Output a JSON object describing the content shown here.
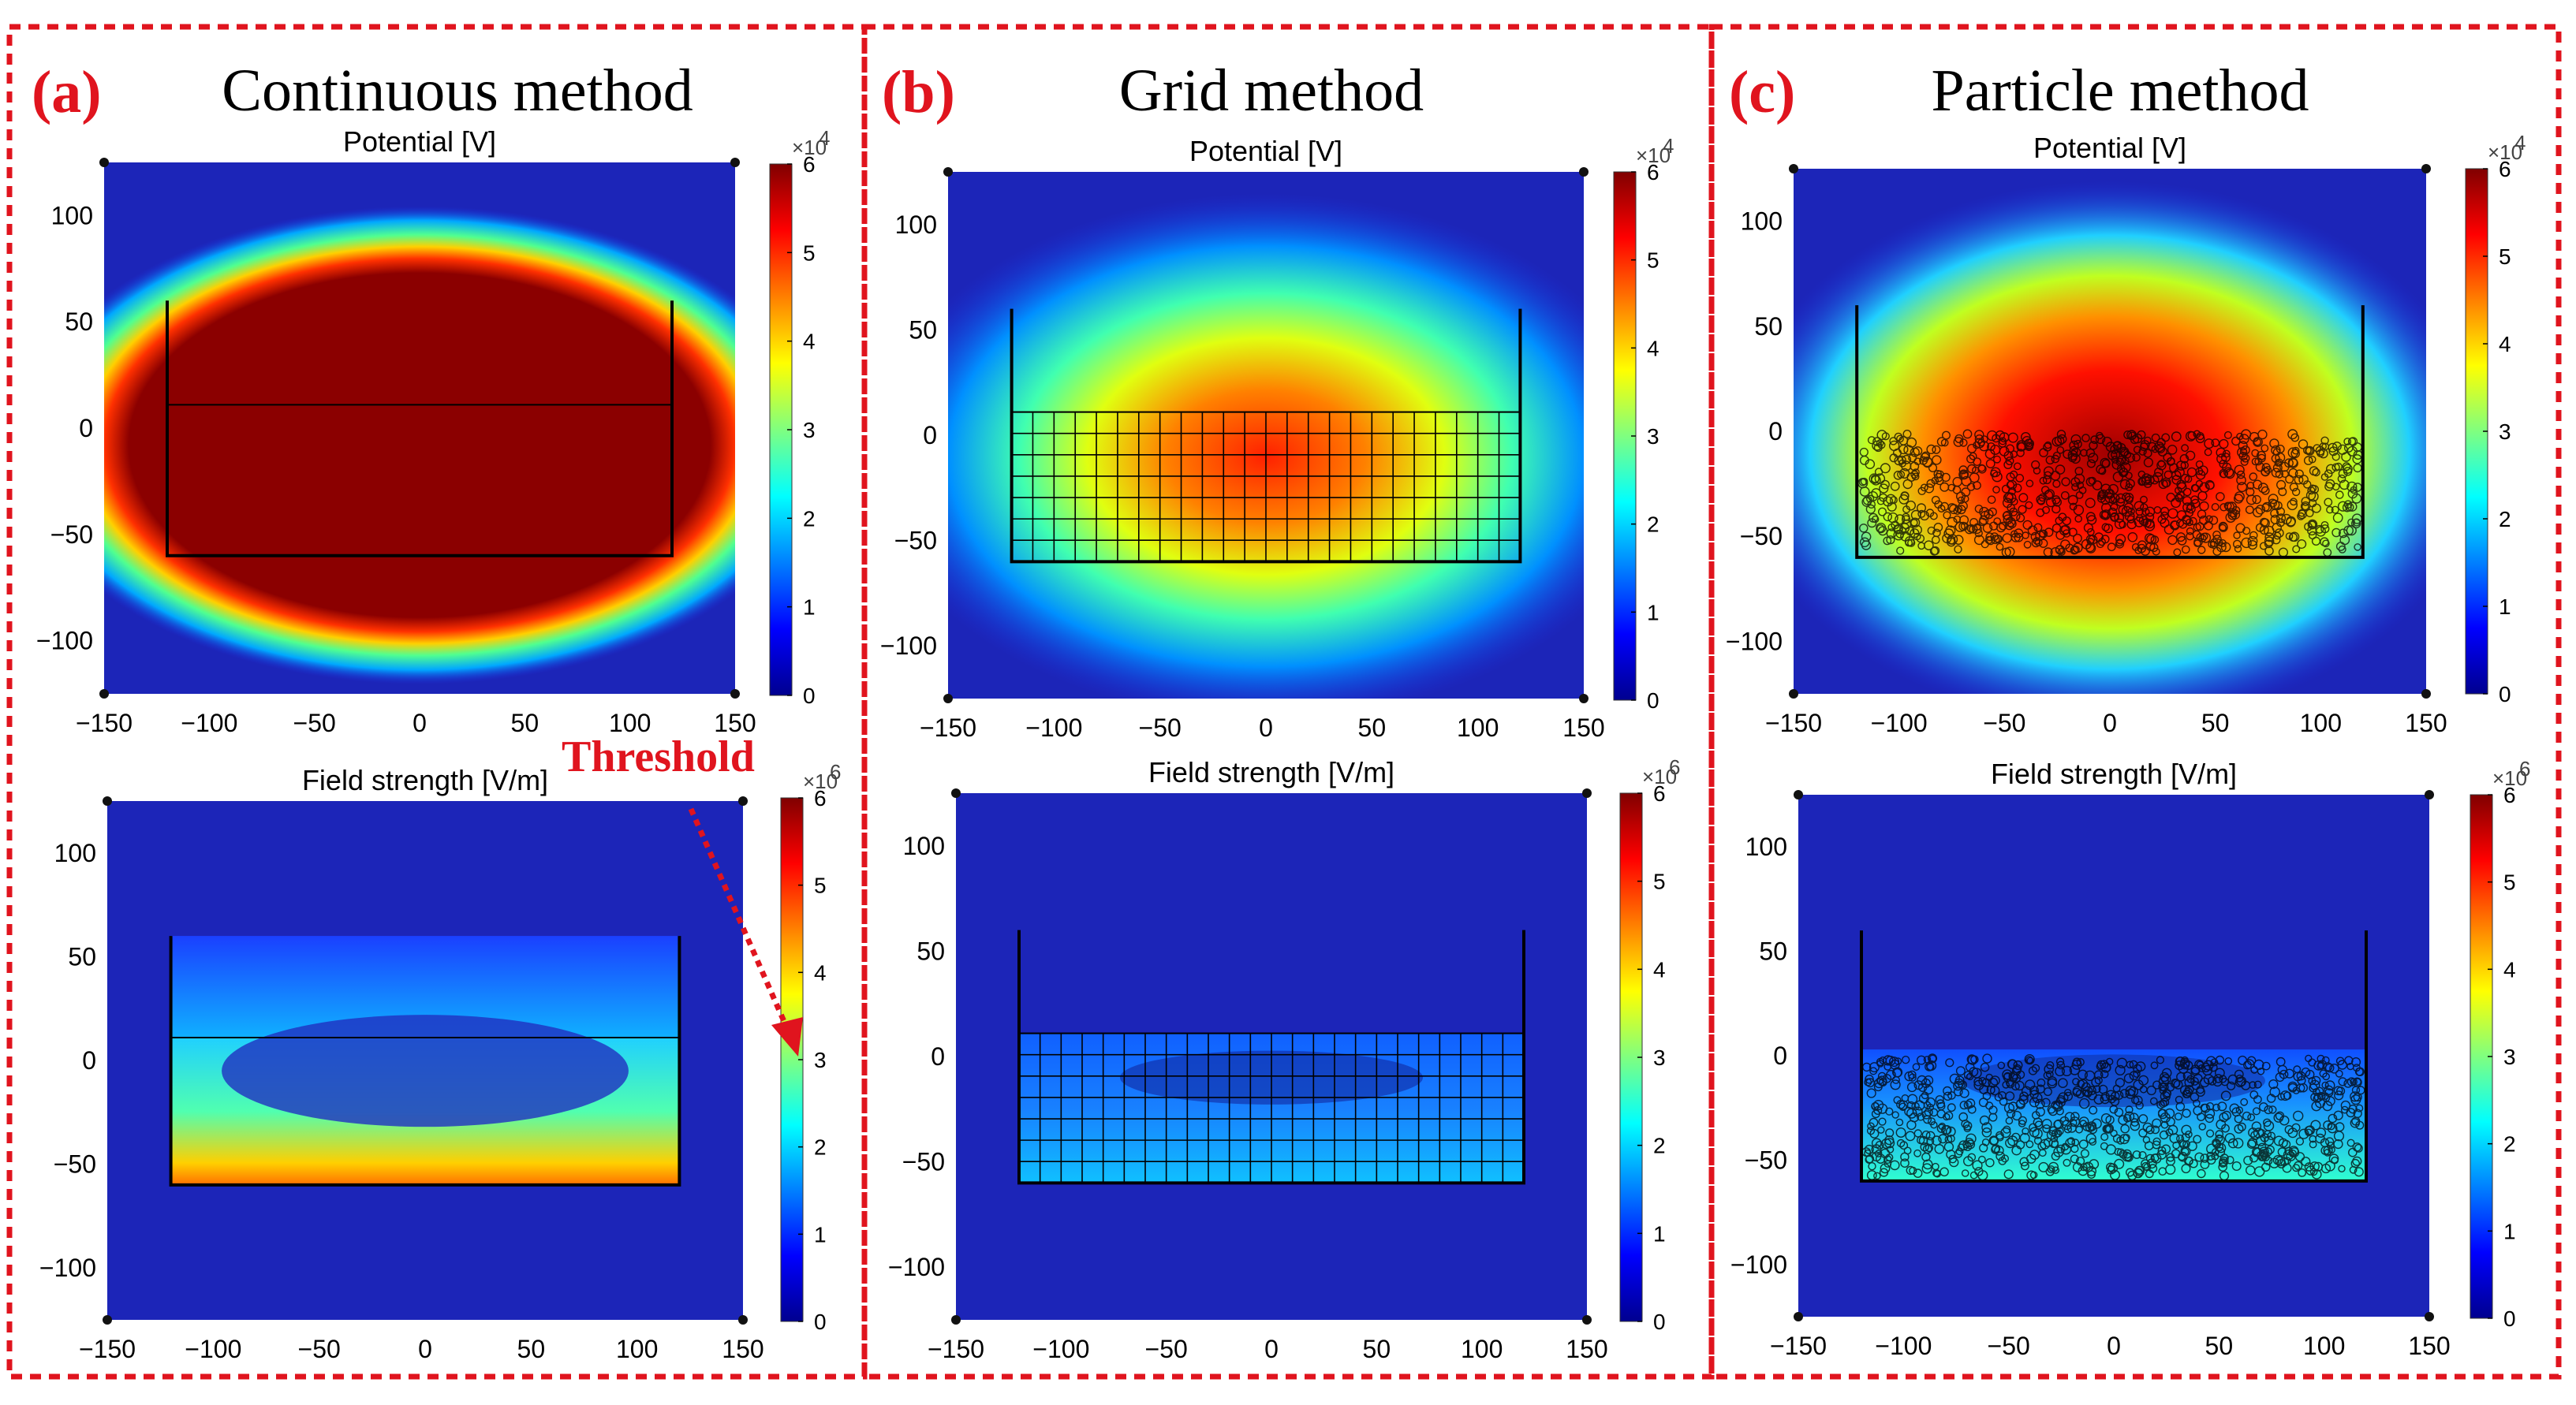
{
  "colors": {
    "frame_dash": "#e0141e",
    "background_field": "#1a1ab4",
    "annotation": "#e0141e"
  },
  "annotation": {
    "text": "Threshold",
    "target_value": 3
  },
  "chart_data": [
    {
      "type": "heatmap",
      "panel_letter": "(a)",
      "panel_title": "Continuous method",
      "title": "Potential [V]",
      "method": "continuous",
      "quantity": "potential",
      "x_ticks": [
        -150,
        -100,
        -50,
        0,
        50,
        100,
        150
      ],
      "y_ticks": [
        100,
        50,
        0,
        -50,
        -100
      ],
      "xlim": [
        -150,
        150
      ],
      "ylim": [
        -125,
        125
      ],
      "colorbar": {
        "range": [
          0,
          6
        ],
        "ticks": [
          0,
          1,
          2,
          3,
          4,
          5,
          6
        ],
        "exponent_label": "×10",
        "exponent_power": "4",
        "colormap": "jet"
      },
      "container": {
        "x": [
          -120,
          120
        ],
        "y_bottom": -60,
        "y_top": 60,
        "fill_level": 11
      }
    },
    {
      "type": "heatmap",
      "panel_letter": "(b)",
      "panel_title": "Grid method",
      "title": "Potential [V]",
      "method": "grid",
      "quantity": "potential",
      "x_ticks": [
        -150,
        -100,
        -50,
        0,
        50,
        100,
        150
      ],
      "y_ticks": [
        100,
        50,
        0,
        -50,
        -100
      ],
      "xlim": [
        -150,
        150
      ],
      "ylim": [
        -125,
        125
      ],
      "colorbar": {
        "range": [
          0,
          6
        ],
        "ticks": [
          0,
          1,
          2,
          3,
          4,
          5,
          6
        ],
        "exponent_label": "×10",
        "exponent_power": "4",
        "colormap": "jet"
      },
      "container": {
        "x": [
          -120,
          120
        ],
        "y_bottom": -60,
        "y_top": 60,
        "fill_level": 11
      }
    },
    {
      "type": "heatmap",
      "panel_letter": "(c)",
      "panel_title": "Particle method",
      "title": "Potential [V]",
      "method": "particle",
      "quantity": "potential",
      "x_ticks": [
        -150,
        -100,
        -50,
        0,
        50,
        100,
        150
      ],
      "y_ticks": [
        100,
        50,
        0,
        -50,
        -100
      ],
      "xlim": [
        -150,
        150
      ],
      "ylim": [
        -125,
        125
      ],
      "colorbar": {
        "range": [
          0,
          6
        ],
        "ticks": [
          0,
          1,
          2,
          3,
          4,
          5,
          6
        ],
        "exponent_label": "×10",
        "exponent_power": "4",
        "colormap": "jet"
      },
      "container": {
        "x": [
          -120,
          120
        ],
        "y_bottom": -60,
        "y_top": 60,
        "fill_level": 0
      }
    },
    {
      "type": "heatmap",
      "title": "Field strength [V/m]",
      "method": "continuous",
      "quantity": "field",
      "x_ticks": [
        -150,
        -100,
        -50,
        0,
        50,
        100,
        150
      ],
      "y_ticks": [
        100,
        50,
        0,
        -50,
        -100
      ],
      "xlim": [
        -150,
        150
      ],
      "ylim": [
        -125,
        125
      ],
      "colorbar": {
        "range": [
          0,
          6
        ],
        "ticks": [
          0,
          1,
          2,
          3,
          4,
          5,
          6
        ],
        "exponent_label": "×10",
        "exponent_power": "6",
        "colormap": "jet"
      },
      "container": {
        "x": [
          -120,
          120
        ],
        "y_bottom": -60,
        "y_top": 60,
        "fill_level": 11
      }
    },
    {
      "type": "heatmap",
      "title": "Field strength [V/m]",
      "method": "grid",
      "quantity": "field",
      "x_ticks": [
        -150,
        -100,
        -50,
        0,
        50,
        100,
        150
      ],
      "y_ticks": [
        100,
        50,
        0,
        -50,
        -100
      ],
      "xlim": [
        -150,
        150
      ],
      "ylim": [
        -125,
        125
      ],
      "colorbar": {
        "range": [
          0,
          6
        ],
        "ticks": [
          0,
          1,
          2,
          3,
          4,
          5,
          6
        ],
        "exponent_label": "×10",
        "exponent_power": "6",
        "colormap": "jet"
      },
      "container": {
        "x": [
          -120,
          120
        ],
        "y_bottom": -60,
        "y_top": 60,
        "fill_level": 11
      }
    },
    {
      "type": "heatmap",
      "title": "Field strength [V/m]",
      "method": "particle",
      "quantity": "field",
      "x_ticks": [
        -150,
        -100,
        -50,
        0,
        50,
        100,
        150
      ],
      "y_ticks": [
        100,
        50,
        0,
        -50,
        -100
      ],
      "xlim": [
        -150,
        150
      ],
      "ylim": [
        -125,
        125
      ],
      "colorbar": {
        "range": [
          0,
          6
        ],
        "ticks": [
          0,
          1,
          2,
          3,
          4,
          5,
          6
        ],
        "exponent_label": "×10",
        "exponent_power": "6",
        "colormap": "jet"
      },
      "container": {
        "x": [
          -120,
          120
        ],
        "y_bottom": -60,
        "y_top": 60,
        "fill_level": 0
      }
    }
  ]
}
